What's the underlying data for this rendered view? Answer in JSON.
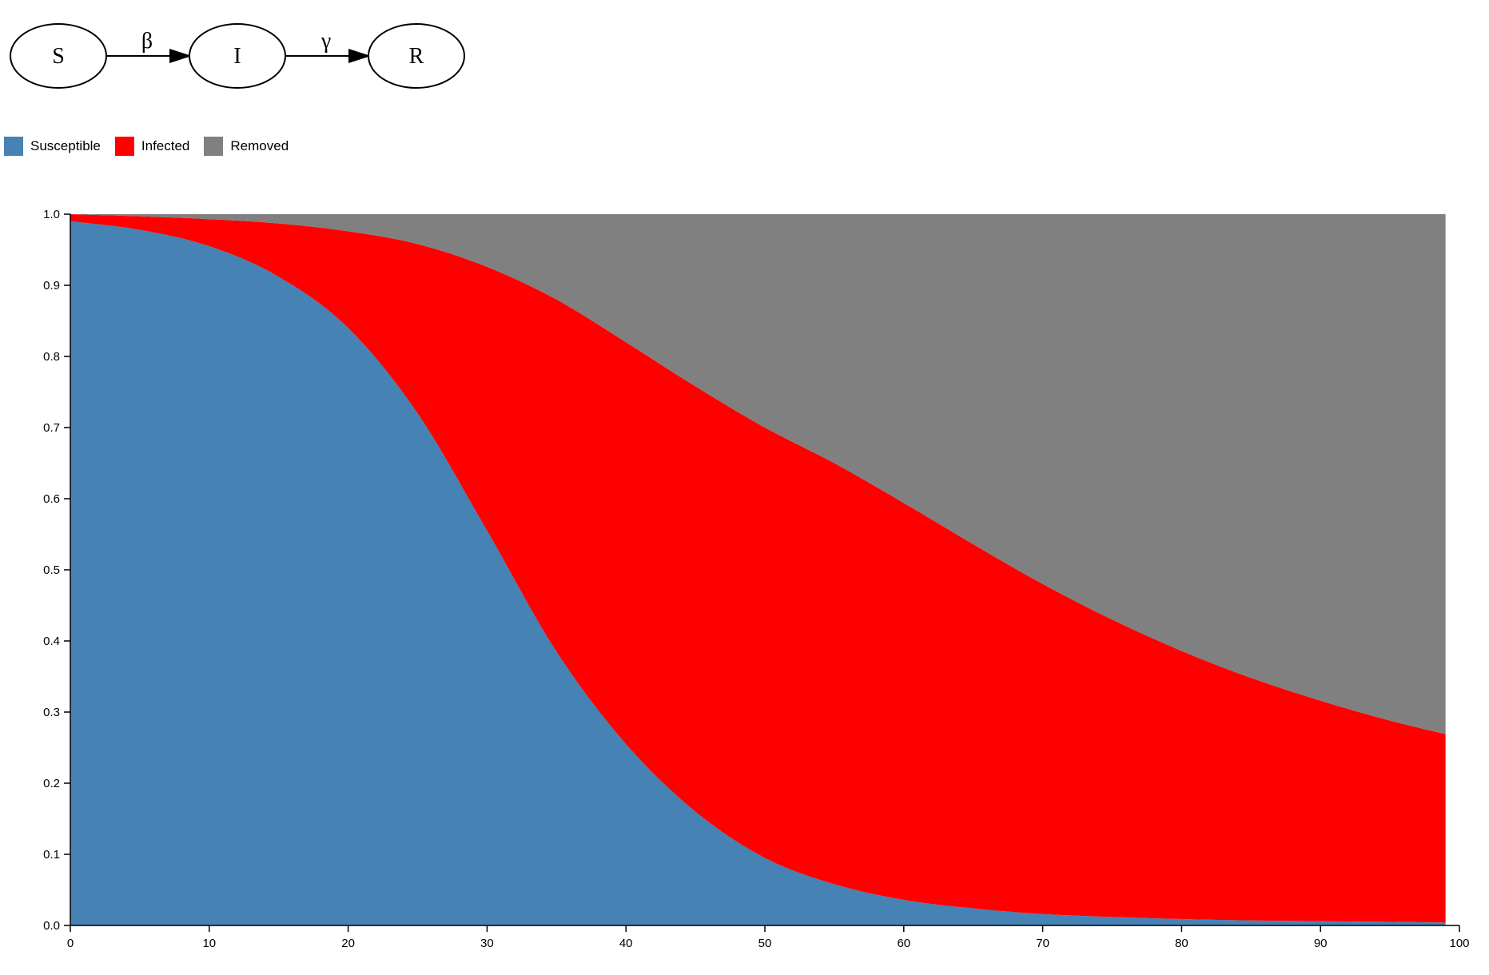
{
  "diagram": {
    "nodes": [
      {
        "id": "S",
        "label": "S"
      },
      {
        "id": "I",
        "label": "I"
      },
      {
        "id": "R",
        "label": "R"
      }
    ],
    "edges": [
      {
        "from": "S",
        "to": "I",
        "label": "β"
      },
      {
        "from": "I",
        "to": "R",
        "label": "γ"
      }
    ]
  },
  "legend": {
    "items": [
      {
        "label": "Susceptible",
        "color": "#4682b4"
      },
      {
        "label": "Infected",
        "color": "#ff0000"
      },
      {
        "label": "Removed",
        "color": "#808080"
      }
    ]
  },
  "chart_data": {
    "type": "area",
    "stacked": true,
    "xlim": [
      0,
      100
    ],
    "ylim": [
      0,
      1
    ],
    "xticks": [
      "0",
      "10",
      "20",
      "30",
      "40",
      "50",
      "60",
      "70",
      "80",
      "90",
      "100"
    ],
    "yticks": [
      "0.0",
      "0.1",
      "0.2",
      "0.3",
      "0.4",
      "0.5",
      "0.6",
      "0.7",
      "0.8",
      "0.9",
      "1.0"
    ],
    "x": [
      0,
      5,
      10,
      15,
      20,
      25,
      30,
      35,
      40,
      45,
      50,
      55,
      60,
      65,
      70,
      75,
      80,
      85,
      90,
      95,
      99
    ],
    "series": [
      {
        "name": "Susceptible",
        "color": "#4682b4",
        "values": [
          0.99,
          0.978,
          0.955,
          0.912,
          0.84,
          0.72,
          0.555,
          0.385,
          0.255,
          0.16,
          0.095,
          0.058,
          0.036,
          0.024,
          0.016,
          0.012,
          0.009,
          0.007,
          0.006,
          0.005,
          0.004
        ]
      },
      {
        "name": "Infected",
        "color": "#ff0000",
        "values": [
          0.01,
          0.019,
          0.038,
          0.075,
          0.136,
          0.238,
          0.371,
          0.495,
          0.565,
          0.598,
          0.605,
          0.592,
          0.558,
          0.512,
          0.464,
          0.418,
          0.377,
          0.341,
          0.31,
          0.283,
          0.265
        ]
      },
      {
        "name": "Removed",
        "color": "#808080",
        "values": [
          0.0,
          0.003,
          0.007,
          0.013,
          0.024,
          0.042,
          0.074,
          0.12,
          0.18,
          0.242,
          0.3,
          0.35,
          0.406,
          0.464,
          0.52,
          0.57,
          0.614,
          0.652,
          0.684,
          0.712,
          0.731
        ]
      }
    ]
  }
}
